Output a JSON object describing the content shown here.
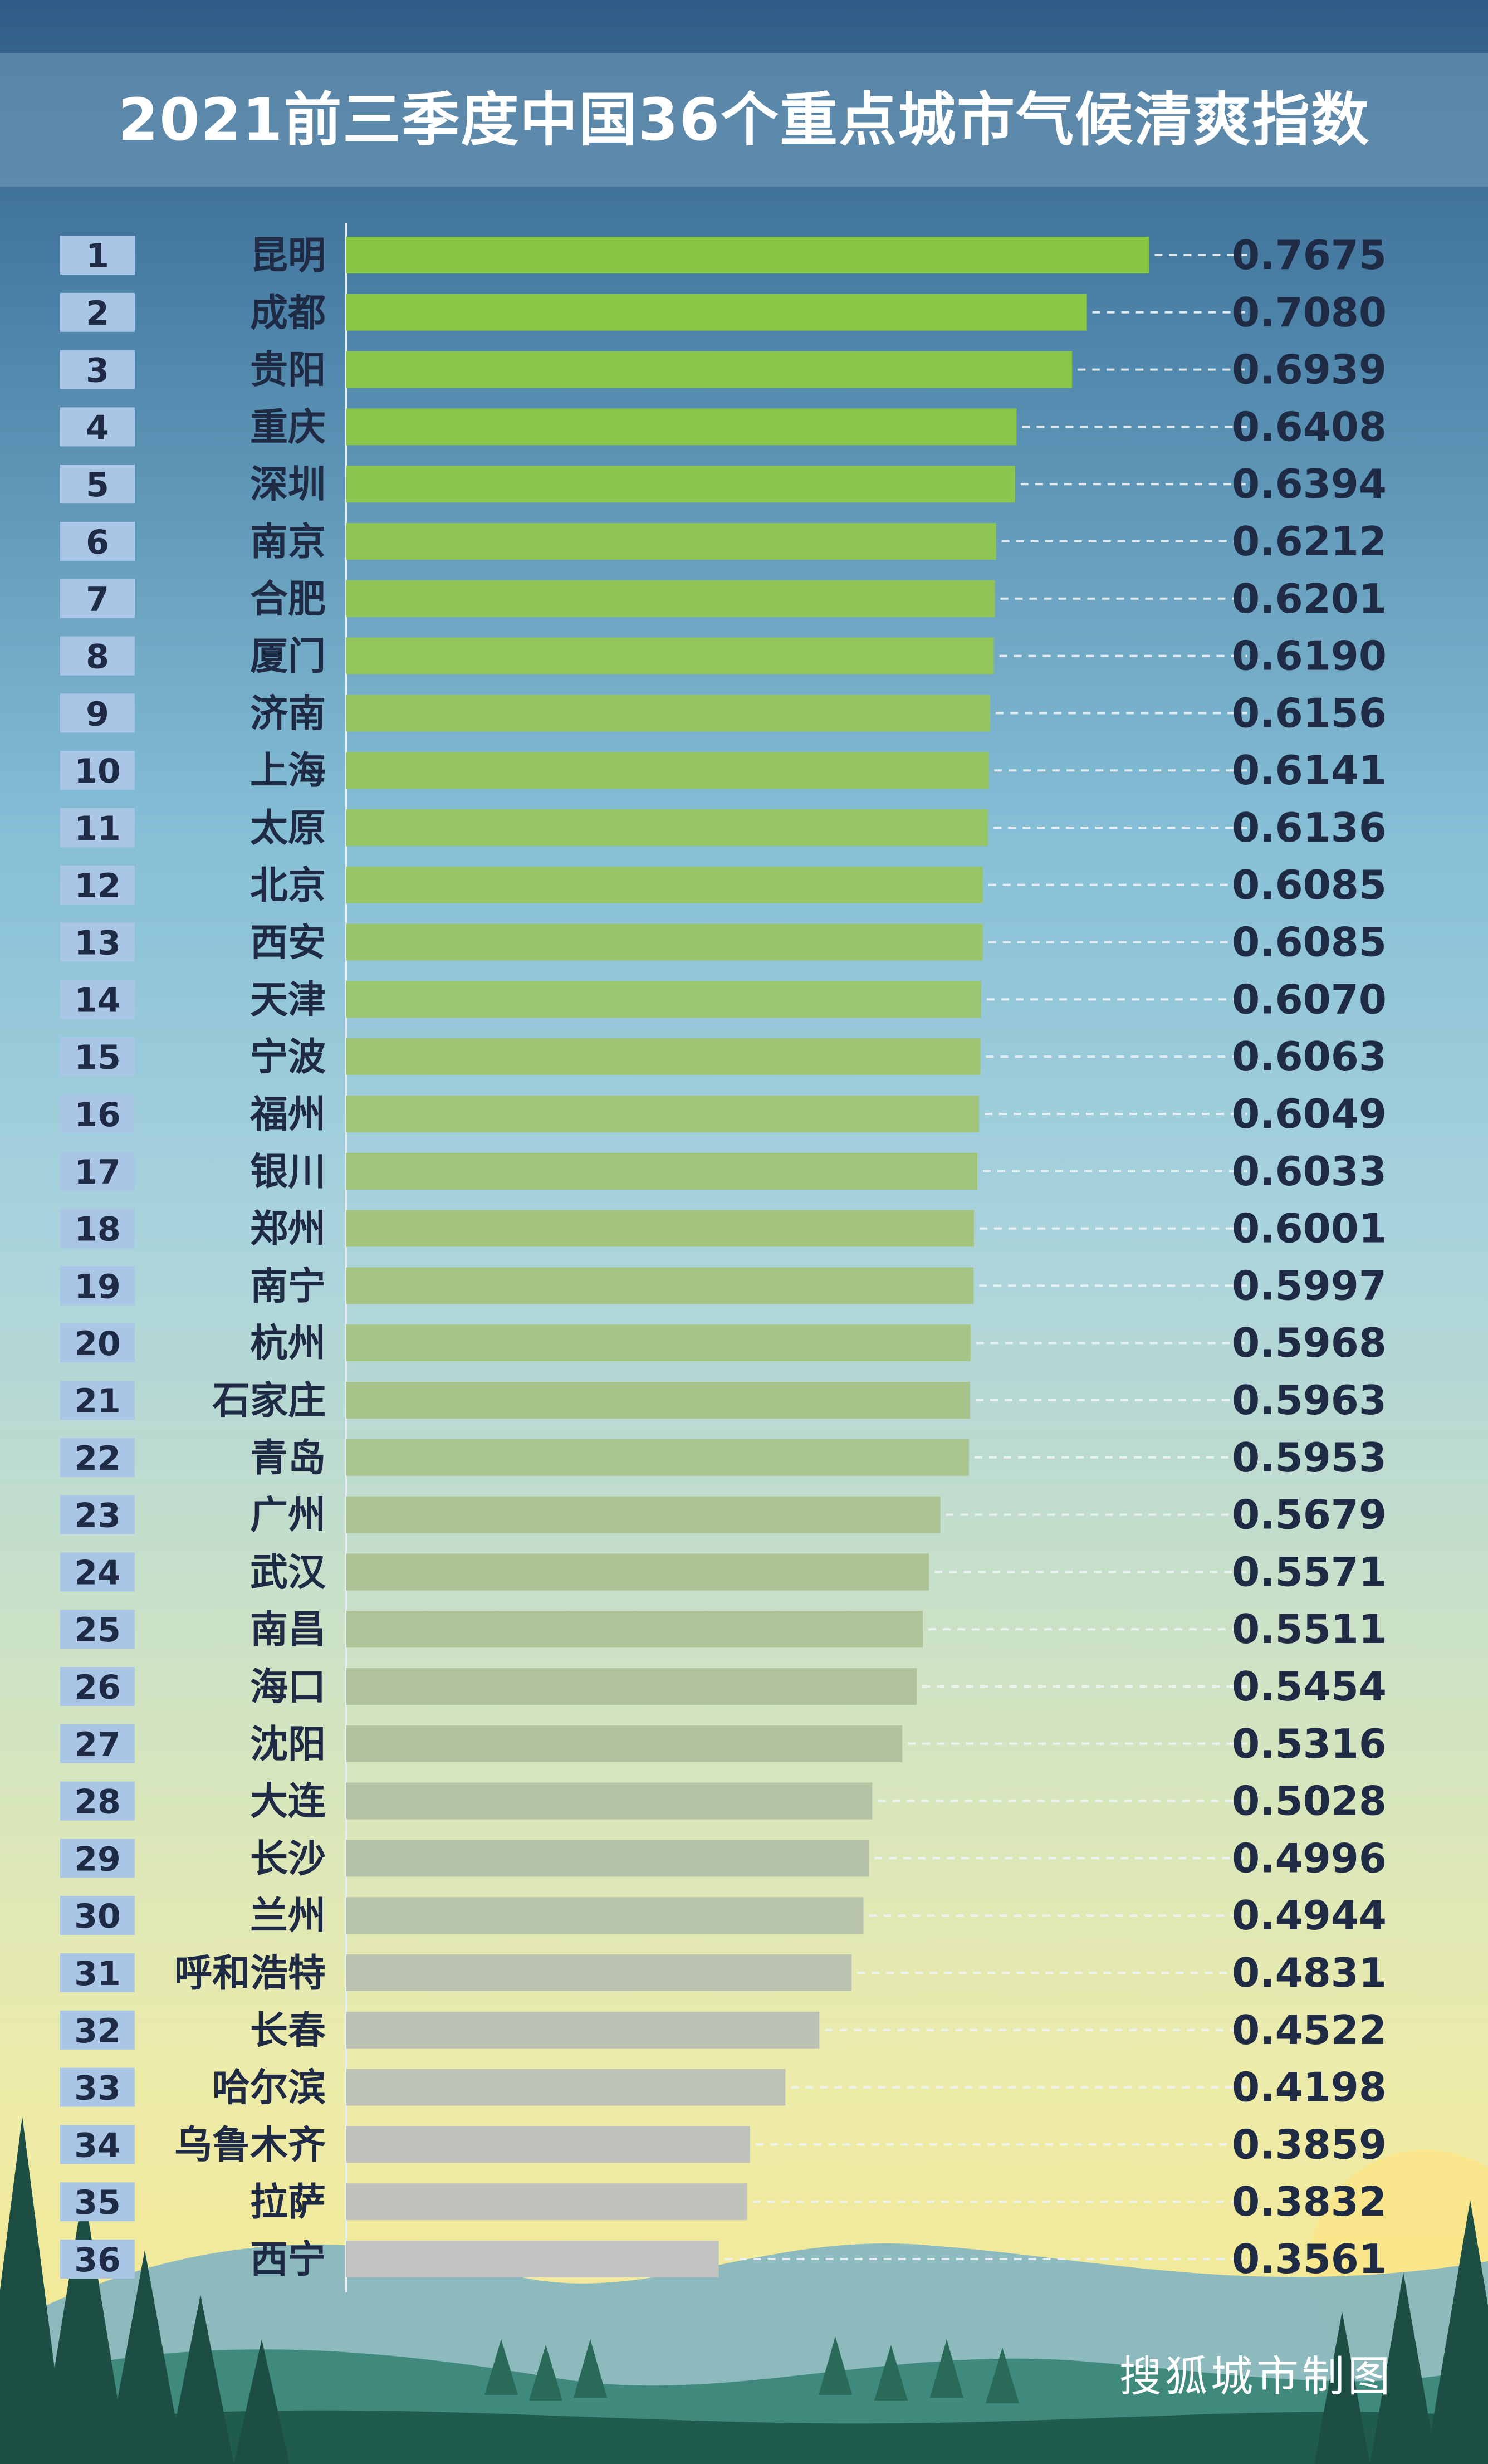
{
  "title": "2021前三季度中国36个重点城市气候清爽指数",
  "credit": "搜狐城市制图",
  "colors": {
    "bar_top": "#86c640",
    "bar_bottom": "#c2c2c2",
    "rank_box": "#a9c6e6",
    "label_text": "#1f2a44"
  },
  "chart_data": {
    "type": "bar",
    "orientation": "horizontal",
    "title": "2021前三季度中国36个重点城市气候清爽指数",
    "xlabel": "",
    "ylabel": "",
    "xlim": [
      0,
      1
    ],
    "grid": false,
    "legend": "none",
    "ranks": [
      "1",
      "2",
      "3",
      "4",
      "5",
      "6",
      "7",
      "8",
      "9",
      "10",
      "11",
      "12",
      "13",
      "14",
      "15",
      "16",
      "17",
      "18",
      "19",
      "20",
      "21",
      "22",
      "23",
      "24",
      "25",
      "26",
      "27",
      "28",
      "29",
      "30",
      "31",
      "32",
      "33",
      "34",
      "35",
      "36"
    ],
    "categories": [
      "昆明",
      "成都",
      "贵阳",
      "重庆",
      "深圳",
      "南京",
      "合肥",
      "厦门",
      "济南",
      "上海",
      "太原",
      "北京",
      "西安",
      "天津",
      "宁波",
      "福州",
      "银川",
      "郑州",
      "南宁",
      "杭州",
      "石家庄",
      "青岛",
      "广州",
      "武汉",
      "南昌",
      "海口",
      "沈阳",
      "大连",
      "长沙",
      "兰州",
      "呼和浩特",
      "长春",
      "哈尔滨",
      "乌鲁木齐",
      "拉萨",
      "西宁"
    ],
    "values": [
      0.7675,
      0.708,
      0.6939,
      0.6408,
      0.6394,
      0.6212,
      0.6201,
      0.619,
      0.6156,
      0.6141,
      0.6136,
      0.6085,
      0.6085,
      0.607,
      0.6063,
      0.6049,
      0.6033,
      0.6001,
      0.5997,
      0.5968,
      0.5963,
      0.5953,
      0.5679,
      0.5571,
      0.5511,
      0.5454,
      0.5316,
      0.5028,
      0.4996,
      0.4944,
      0.4831,
      0.4522,
      0.4198,
      0.3859,
      0.3832,
      0.3561
    ],
    "value_labels": [
      "0.7675",
      "0.7080",
      "0.6939",
      "0.6408",
      "0.6394",
      "0.6212",
      "0.6201",
      "0.6190",
      "0.6156",
      "0.6141",
      "0.6136",
      "0.6085",
      "0.6085",
      "0.6070",
      "0.6063",
      "0.6049",
      "0.6033",
      "0.6001",
      "0.5997",
      "0.5968",
      "0.5963",
      "0.5953",
      "0.5679",
      "0.5571",
      "0.5511",
      "0.5454",
      "0.5316",
      "0.5028",
      "0.4996",
      "0.4944",
      "0.4831",
      "0.4522",
      "0.4198",
      "0.3859",
      "0.3832",
      "0.3561"
    ]
  }
}
